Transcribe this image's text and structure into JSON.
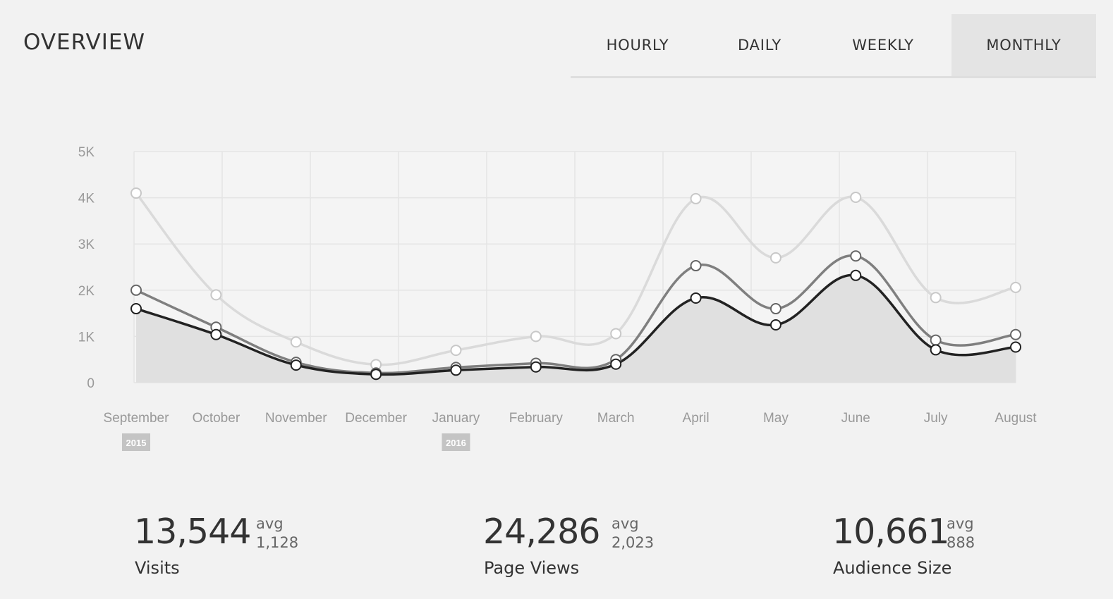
{
  "header": {
    "title": "OVERVIEW",
    "tabs": [
      {
        "label": "HOURLY",
        "active": false
      },
      {
        "label": "DAILY",
        "active": false
      },
      {
        "label": "WEEKLY",
        "active": false
      },
      {
        "label": "MONTHLY",
        "active": true
      }
    ]
  },
  "chart_data": {
    "type": "line",
    "categories": [
      "September",
      "October",
      "November",
      "December",
      "January",
      "February",
      "March",
      "April",
      "May",
      "June",
      "July",
      "August"
    ],
    "year_markers": [
      {
        "category": "September",
        "label": "2015"
      },
      {
        "category": "January",
        "label": "2016"
      }
    ],
    "y_ticks": [
      "0",
      "1K",
      "2K",
      "3K",
      "4K",
      "5K"
    ],
    "ylim": [
      0,
      5000
    ],
    "grid": true,
    "series": [
      {
        "values": [
          4100,
          1900,
          880,
          390,
          700,
          1000,
          1060,
          3980,
          2700,
          4010,
          1840,
          2060
        ],
        "color": "#dadada",
        "marker_stroke": "#c8c8c8"
      },
      {
        "values": [
          2000,
          1200,
          440,
          210,
          330,
          420,
          500,
          2530,
          1600,
          2740,
          920,
          1040
        ],
        "color": "#7f7f7f",
        "marker_stroke": "#666666"
      },
      {
        "values": [
          1600,
          1040,
          380,
          180,
          270,
          340,
          400,
          1830,
          1250,
          2320,
          710,
          770
        ],
        "color": "#222222",
        "marker_stroke": "#222222",
        "filled": true
      }
    ]
  },
  "stats": [
    {
      "value": "13,544",
      "avg_label": "avg",
      "avg_value": "1,128",
      "label": "Visits"
    },
    {
      "value": "24,286",
      "avg_label": "avg",
      "avg_value": "2,023",
      "label": "Page Views"
    },
    {
      "value": "10,661",
      "avg_label": "avg",
      "avg_value": "888",
      "label": "Audience Size"
    }
  ],
  "colors": {
    "background": "#f2f2f2",
    "grid": "#e4e4e4",
    "area_fill": "#e0e0e0",
    "active_tab": "#e4e4e4",
    "year_badge": "#c4c4c4"
  }
}
